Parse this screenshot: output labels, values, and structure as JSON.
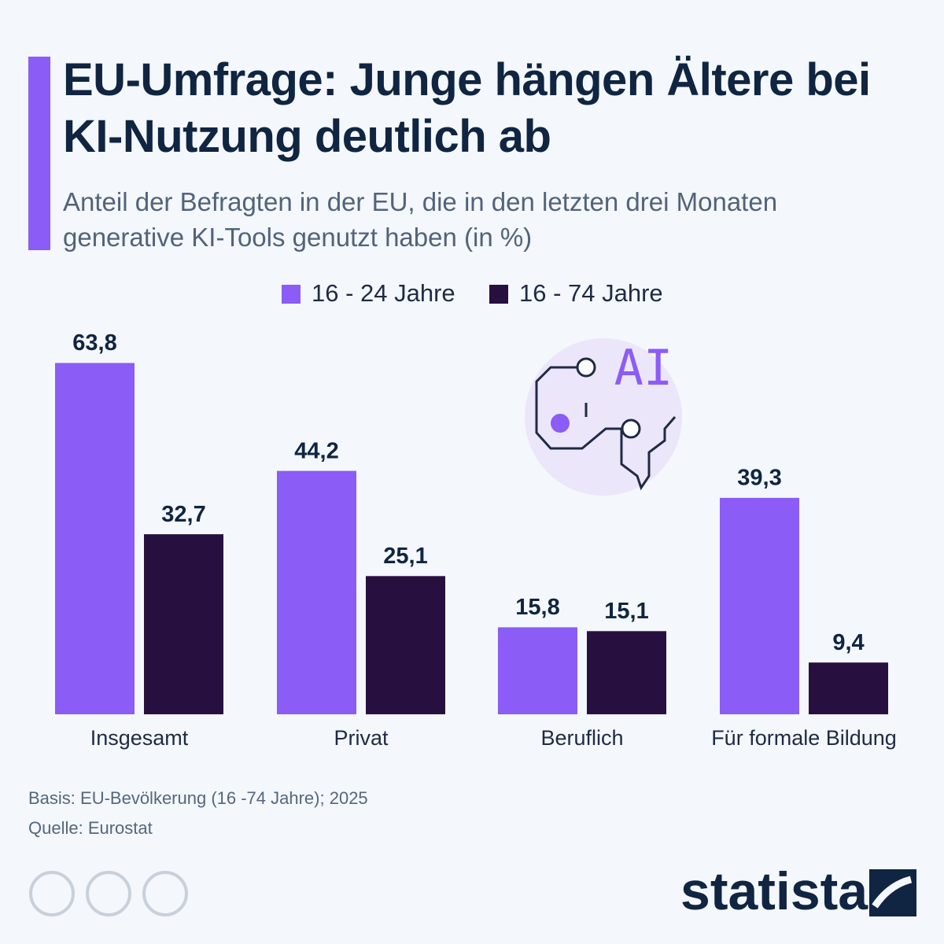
{
  "chart_data": {
    "type": "bar",
    "title": "EU-Umfrage: Junge hängen Ältere bei KI-Nutzung deutlich ab",
    "subtitle": "Anteil der Befragten in der EU, die in den letzten drei Monaten generative KI-Tools genutzt haben (in %)",
    "categories": [
      "Insgesamt",
      "Privat",
      "Beruflich",
      "Für formale Bildung"
    ],
    "series": [
      {
        "name": "16 - 24 Jahre",
        "color": "#8b5cf6",
        "values": [
          63.8,
          44.2,
          15.8,
          39.3
        ],
        "value_labels": [
          "63,8",
          "44,2",
          "15,8",
          "39,3"
        ]
      },
      {
        "name": "16 - 74 Jahre",
        "color": "#271040",
        "values": [
          32.7,
          25.1,
          15.1,
          9.4
        ],
        "value_labels": [
          "32,7",
          "25,1",
          "15,1",
          "9,4"
        ]
      }
    ],
    "icon_label": "AI",
    "notes": [
      "Basis: EU-Bevölkerung (16 -74 Jahre); 2025",
      "Quelle: Eurostat"
    ],
    "brand": "statista"
  }
}
